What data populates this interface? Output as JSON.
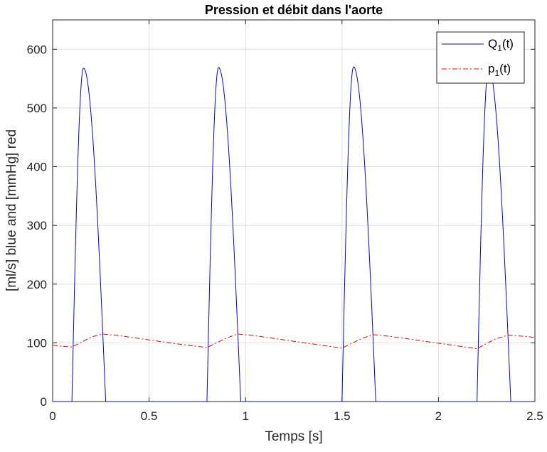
{
  "chart_data": {
    "type": "line",
    "title": "Pression et débit dans l'aorte",
    "xlabel": "Temps [s]",
    "ylabel": "[ml/s] blue and [mmHg] red",
    "xlim": [
      0,
      2.5
    ],
    "ylim": [
      0,
      650
    ],
    "xticks": [
      0,
      0.5,
      1,
      1.5,
      2,
      2.5
    ],
    "xtick_labels": [
      "0",
      "0.5",
      "1",
      "1.5",
      "2",
      "2.5"
    ],
    "yticks": [
      0,
      100,
      200,
      300,
      400,
      500,
      600
    ],
    "ytick_labels": [
      "0",
      "100",
      "200",
      "300",
      "400",
      "500",
      "600"
    ],
    "grid": true,
    "legend": {
      "position": "top-right",
      "entries": [
        {
          "main": "Q",
          "sub": "1",
          "suffix": "(t)",
          "series": 0
        },
        {
          "main": "p",
          "sub": "1",
          "suffix": "(t)",
          "series": 1
        }
      ]
    },
    "series": [
      {
        "name": "Q1(t)",
        "color": "#0000ff",
        "style": "solid",
        "period": 0.7,
        "pulse": {
          "start": 0.1,
          "peak_time": 0.16,
          "end": 0.275,
          "peak_values": [
            568,
            569,
            570,
            568
          ]
        },
        "x": [
          0,
          0.1
        ],
        "y": [
          0,
          0
        ]
      },
      {
        "name": "p1(t)",
        "color": "#ff0000",
        "style": "dashdot",
        "x": [
          0,
          0.05,
          0.1,
          0.15,
          0.2,
          0.26,
          0.35,
          0.5,
          0.65,
          0.8,
          0.85,
          0.9,
          0.96,
          1.05,
          1.2,
          1.35,
          1.5,
          1.55,
          1.6,
          1.66,
          1.75,
          1.9,
          2.05,
          2.2,
          2.25,
          2.3,
          2.36,
          2.45,
          2.5
        ],
        "y": [
          96,
          94,
          93,
          101,
          110,
          115,
          112,
          105,
          98,
          92,
          100,
          108,
          115,
          112,
          105,
          98,
          91,
          99,
          107,
          114,
          111,
          104,
          97,
          90,
          99,
          107,
          113,
          111,
          109
        ]
      }
    ]
  }
}
